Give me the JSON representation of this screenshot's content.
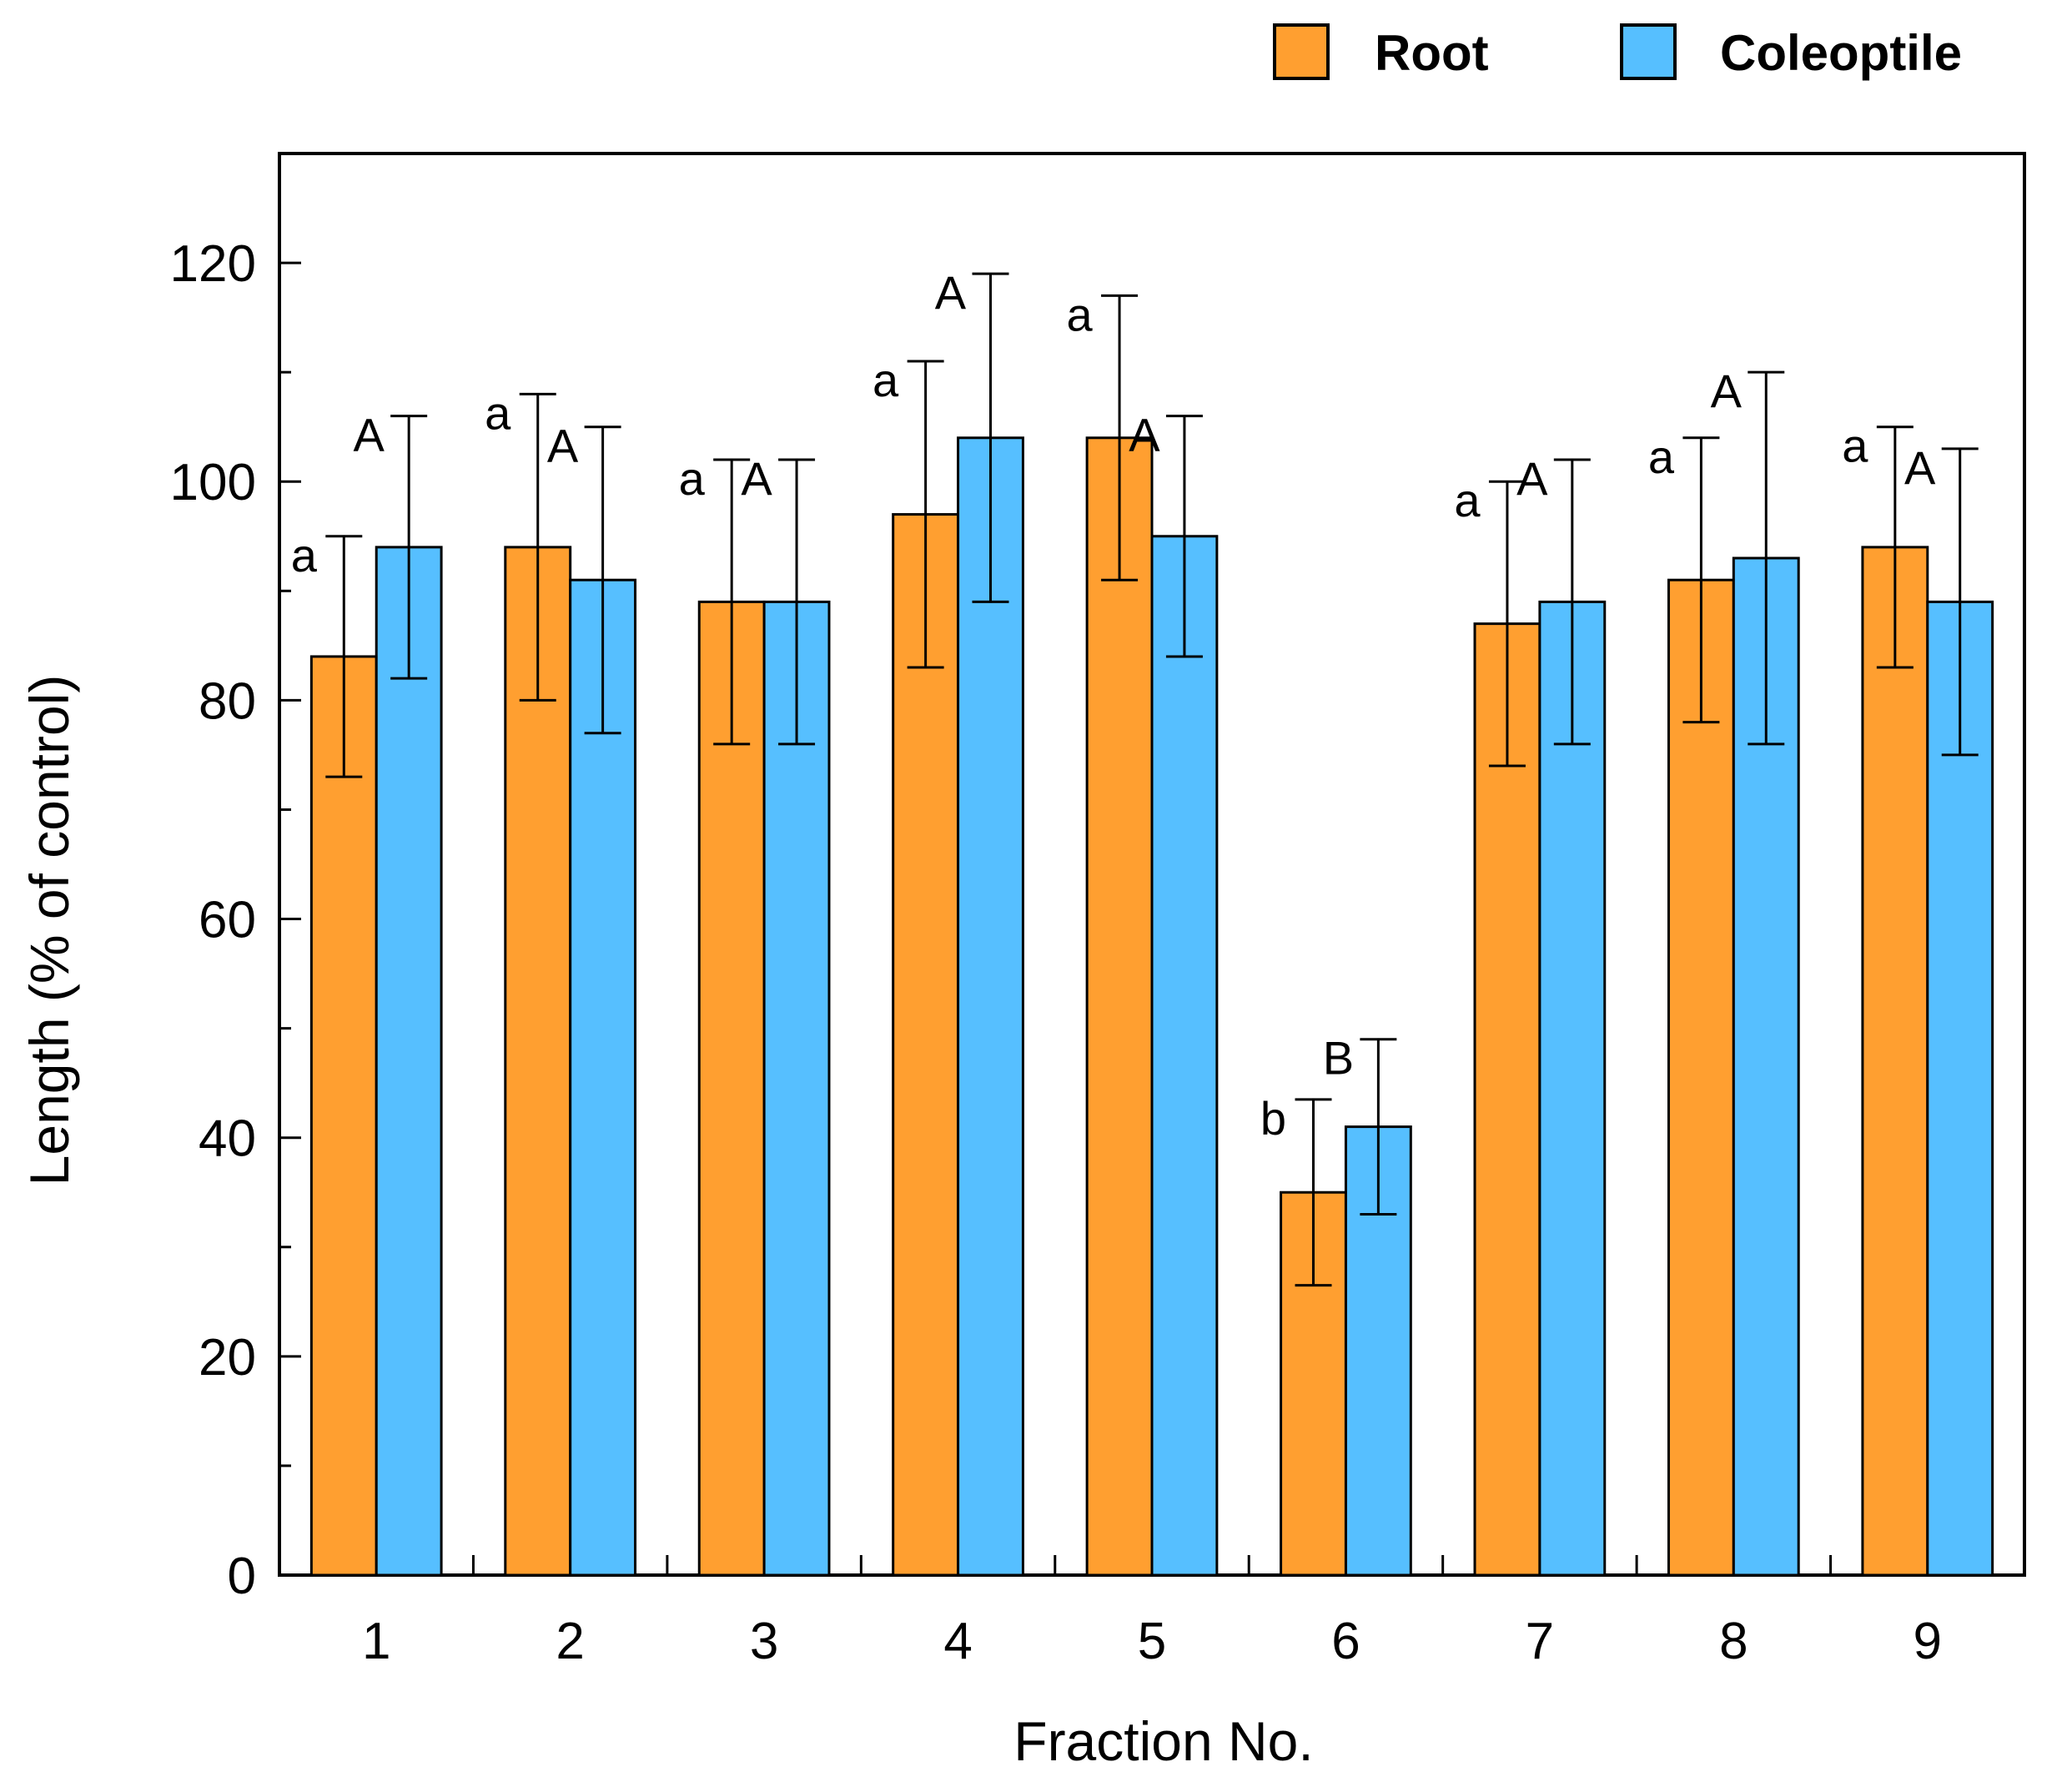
{
  "chart_data": {
    "type": "bar",
    "xlabel": "Fraction No.",
    "ylabel": "Length  (% of control)",
    "ylim": [
      0,
      130
    ],
    "yticks": [
      "0",
      "20",
      "40",
      "60",
      "80",
      "100",
      "120"
    ],
    "ytick_values": [
      0,
      20,
      40,
      60,
      80,
      100,
      120
    ],
    "minor_tick_step": 10,
    "categories": [
      "1",
      "2",
      "3",
      "4",
      "5",
      "6",
      "7",
      "8",
      "9"
    ],
    "legend_position": "top-right",
    "series": [
      {
        "name": "Root",
        "color": "#FF9F30",
        "values": [
          84,
          94,
          89,
          97,
          104,
          35,
          87,
          91,
          94
        ],
        "error": [
          11,
          14,
          13,
          14,
          13,
          8.5,
          13,
          13,
          11
        ],
        "letters": [
          "a",
          "a",
          "a",
          "a",
          "a",
          "b",
          "a",
          "a",
          "a"
        ]
      },
      {
        "name": "Coleoptile",
        "color": "#56BFFF",
        "values": [
          94,
          91,
          89,
          104,
          95,
          41,
          89,
          93,
          89
        ],
        "error": [
          12,
          14,
          13,
          15,
          11,
          8,
          13,
          17,
          14
        ],
        "letters": [
          "A",
          "A",
          "A",
          "A",
          "A",
          "B",
          "A",
          "A",
          "A"
        ]
      }
    ]
  }
}
